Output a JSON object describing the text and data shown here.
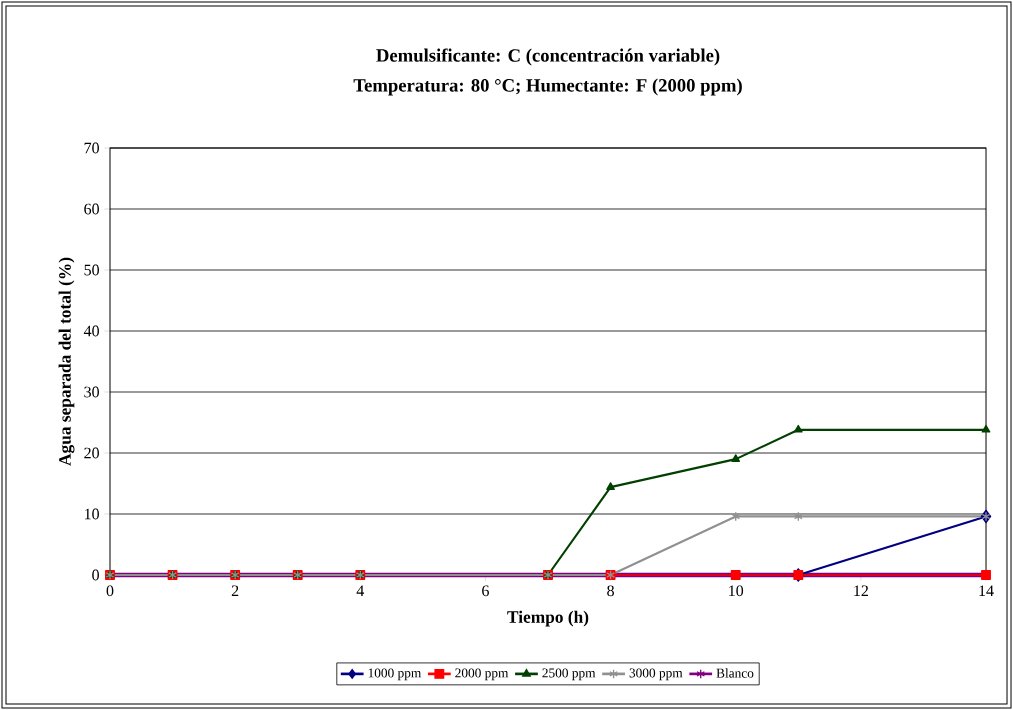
{
  "chart_data": {
    "type": "line",
    "title": "Demulsificante: C (concentración variable)",
    "subtitle": "Temperatura: 80 °C; Humectante: F (2000 ppm)",
    "xlabel": "Tiempo (h)",
    "ylabel": "Agua separada del total (%)",
    "x": [
      0,
      1,
      2,
      3,
      4,
      7,
      8,
      10,
      11,
      14
    ],
    "series": [
      {
        "name": "1000 ppm",
        "color": "#000080",
        "marker": "diamond",
        "values": [
          null,
          null,
          null,
          null,
          null,
          null,
          null,
          null,
          0,
          9.6
        ]
      },
      {
        "name": "2000 ppm",
        "color": "#ff0000",
        "marker": "square",
        "values": [
          0,
          0,
          0,
          0,
          0,
          0,
          0,
          0,
          0,
          0
        ]
      },
      {
        "name": "2500 ppm",
        "color": "#004000",
        "marker": "triangle",
        "values": [
          0,
          0,
          0,
          0,
          0,
          0,
          14.4,
          19,
          23.8,
          23.8
        ]
      },
      {
        "name": "3000 ppm",
        "color": "#909090",
        "marker": "cross",
        "values": [
          0,
          0,
          0,
          0,
          0,
          0,
          0,
          9.6,
          9.6,
          9.6
        ]
      },
      {
        "name": "Blanco",
        "color": "#800080",
        "marker": "cross",
        "values": [
          0,
          0,
          0,
          0,
          0,
          0,
          0,
          0,
          0,
          0
        ]
      }
    ],
    "xlim": [
      0,
      14
    ],
    "xticks": [
      0,
      2,
      4,
      6,
      8,
      10,
      12,
      14
    ],
    "ylim": [
      0,
      70
    ],
    "yticks": [
      0,
      10,
      20,
      30,
      40,
      50,
      60,
      70
    ],
    "grid": "y",
    "legend": "bottom",
    "line_style": "solid"
  }
}
